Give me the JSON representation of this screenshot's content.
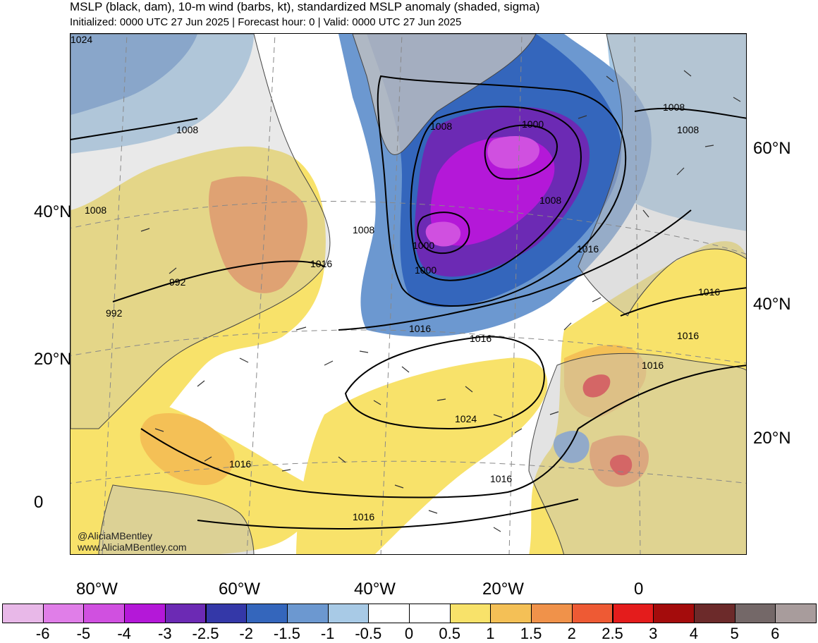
{
  "header": {
    "title": "MSLP (black, dam), 10-m wind (barbs, kt), standardized MSLP anomaly (shaded, sigma)",
    "subtitle": "Initialized: 0000 UTC 27 Jun 2025 | Forecast hour: 0 | Valid: 0000 UTC 27 Jun 2025"
  },
  "map": {
    "lat_labels_left": [
      "40°N",
      "20°N",
      "0"
    ],
    "lat_labels_right": [
      "60°N",
      "40°N",
      "20°N"
    ],
    "lon_labels_bottom": [
      "80°W",
      "60°W",
      "40°W",
      "20°W",
      "0"
    ],
    "isobar_labels": [
      "1008",
      "1008",
      "1008",
      "1008",
      "1008",
      "1008",
      "1008",
      "1000",
      "1000",
      "1000",
      "992",
      "992",
      "1016",
      "1016",
      "1016",
      "1016",
      "1016",
      "1016",
      "1016",
      "1016",
      "1016",
      "1016",
      "1024",
      "1024"
    ],
    "credit_handle": "@AliciaMBentley",
    "credit_url": "www.AliciaMBentley.com",
    "colors": {
      "land": "#c0c0c0",
      "ocean": "#ffffff",
      "isobar": "#000000",
      "grid": "#888888"
    }
  },
  "colorbar": {
    "colors": [
      "#e8b8e8",
      "#e07ee8",
      "#d050e0",
      "#b418d8",
      "#6c2ab4",
      "#3438a8",
      "#3466bc",
      "#6c98d0",
      "#a8cae6",
      "#ffffff",
      "#ffffff",
      "#f8e26a",
      "#f4c056",
      "#f0924a",
      "#ee5a34",
      "#e41c1c",
      "#a40c0c",
      "#6c2a2a",
      "#746868",
      "#a89c9c"
    ],
    "labels": [
      "-6",
      "-5",
      "-4",
      "-3",
      "-2.5",
      "-2",
      "-1.5",
      "-1",
      "-0.5",
      "0",
      "0.5",
      "1",
      "1.5",
      "2",
      "2.5",
      "3",
      "4",
      "5",
      "6"
    ]
  }
}
